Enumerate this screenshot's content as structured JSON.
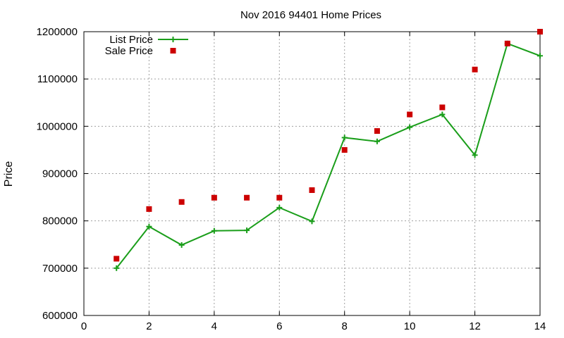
{
  "chart_data": {
    "type": "line",
    "title": "Nov 2016 94401 Home Prices",
    "xlabel": "",
    "ylabel": "Price",
    "xlim": [
      0,
      14
    ],
    "ylim": [
      600000,
      1200000
    ],
    "x_ticks": [
      "0",
      "2",
      "4",
      "6",
      "8",
      "10",
      "12",
      "14"
    ],
    "y_ticks": [
      "600000",
      "700000",
      "800000",
      "900000",
      "1000000",
      "1100000",
      "1200000"
    ],
    "grid": true,
    "legend_position": "top-left",
    "series": [
      {
        "name": "List Price",
        "style": "line-with-plus-markers",
        "color": "#1a9e1a",
        "x": [
          1,
          2,
          3,
          4,
          5,
          6,
          7,
          8,
          9,
          10,
          11,
          12,
          13,
          14
        ],
        "y": [
          700000,
          788000,
          749000,
          779000,
          780000,
          828000,
          799000,
          976000,
          968000,
          998000,
          1025000,
          939000,
          1175000,
          1149000
        ]
      },
      {
        "name": "Sale Price",
        "style": "square-markers",
        "color": "#cc0000",
        "x": [
          1,
          2,
          3,
          4,
          5,
          6,
          7,
          8,
          9,
          10,
          11,
          12,
          13,
          14
        ],
        "y": [
          720000,
          825000,
          840000,
          849000,
          849000,
          849000,
          865000,
          950000,
          990000,
          1025000,
          1040000,
          1120000,
          1175000,
          1200000
        ]
      }
    ]
  }
}
